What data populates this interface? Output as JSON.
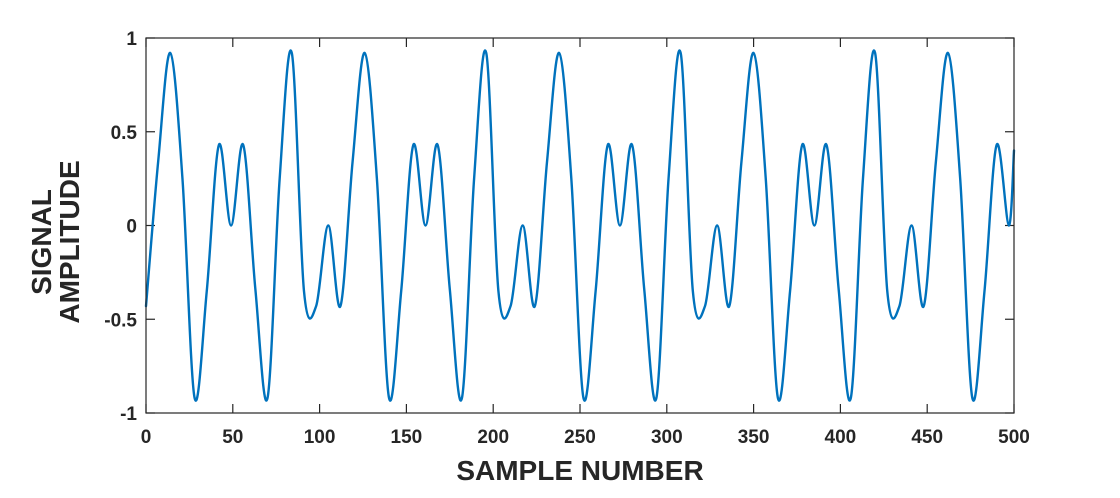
{
  "chart_data": {
    "type": "line",
    "title": "",
    "xlabel": "SAMPLE  NUMBER",
    "ylabel_lines": [
      "SIGNAL",
      "AMPLITUDE"
    ],
    "xlim": [
      0,
      500
    ],
    "ylim": [
      -1,
      1
    ],
    "x_ticks": [
      0,
      50,
      100,
      150,
      200,
      250,
      300,
      350,
      400,
      450,
      500
    ],
    "y_ticks": [
      -1,
      -0.5,
      0,
      0.5,
      1
    ],
    "y_tick_labels": [
      "-1",
      "-0.5",
      "0",
      "0.5",
      "1"
    ],
    "grid": false,
    "legend": "none",
    "series": [
      {
        "color": "#0072BD",
        "x": [
          0,
          7,
          14,
          21,
          28,
          35,
          42,
          49,
          56,
          63,
          70,
          77,
          84,
          91,
          98,
          105,
          112,
          119,
          126,
          133,
          140,
          147,
          154,
          161,
          168,
          175,
          182,
          189,
          196,
          203,
          210,
          217,
          224,
          231,
          238,
          245,
          252,
          259,
          266,
          273,
          280,
          287,
          294,
          301,
          308,
          315,
          322,
          329,
          336,
          343,
          350,
          357,
          364,
          371,
          378,
          385,
          392,
          399,
          406,
          413,
          420,
          427,
          434,
          441,
          448,
          455,
          462,
          469,
          476,
          483,
          490,
          497,
          500
        ],
        "y": [
          -0.43,
          0.34,
          0.92,
          0.25,
          -0.92,
          -0.35,
          0.43,
          0.0,
          0.43,
          -0.34,
          -0.92,
          0.25,
          0.92,
          -0.35,
          -0.43,
          0.0,
          -0.43,
          0.34,
          0.92,
          0.25,
          -0.92,
          -0.35,
          0.43,
          0.0,
          0.43,
          -0.34,
          -0.92,
          0.25,
          0.92,
          -0.35,
          -0.43,
          0.0,
          -0.43,
          0.34,
          0.92,
          0.25,
          -0.92,
          -0.35,
          0.43,
          0.0,
          0.43,
          -0.34,
          -0.92,
          0.25,
          0.92,
          -0.35,
          -0.43,
          0.0,
          -0.43,
          0.34,
          0.92,
          0.25,
          -0.92,
          -0.35,
          0.43,
          0.0,
          0.43,
          -0.34,
          -0.92,
          0.25,
          0.92,
          -0.35,
          -0.43,
          0.0,
          -0.43,
          0.34,
          0.92,
          0.25,
          -0.92,
          -0.35,
          0.43,
          0.0,
          0.4
        ]
      }
    ]
  }
}
